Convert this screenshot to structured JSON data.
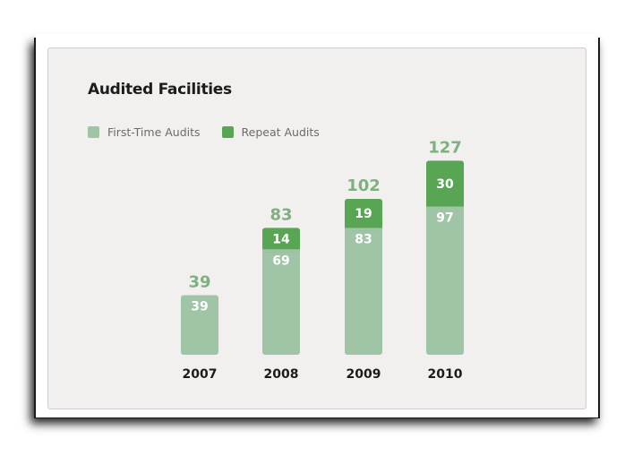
{
  "chart_data": {
    "type": "bar",
    "stacked": true,
    "title": "Audited Facilities",
    "categories": [
      "2007",
      "2008",
      "2009",
      "2010"
    ],
    "series": [
      {
        "name": "First-Time Audits",
        "values": [
          39,
          69,
          83,
          97
        ],
        "color": "#a0c4a6"
      },
      {
        "name": "Repeat Audits",
        "values": [
          0,
          14,
          19,
          30
        ],
        "color": "#58a653"
      }
    ],
    "totals": [
      39,
      83,
      102,
      127
    ],
    "total_label_color": "#7fb07d",
    "legend_position": "top-left",
    "grid": false
  }
}
